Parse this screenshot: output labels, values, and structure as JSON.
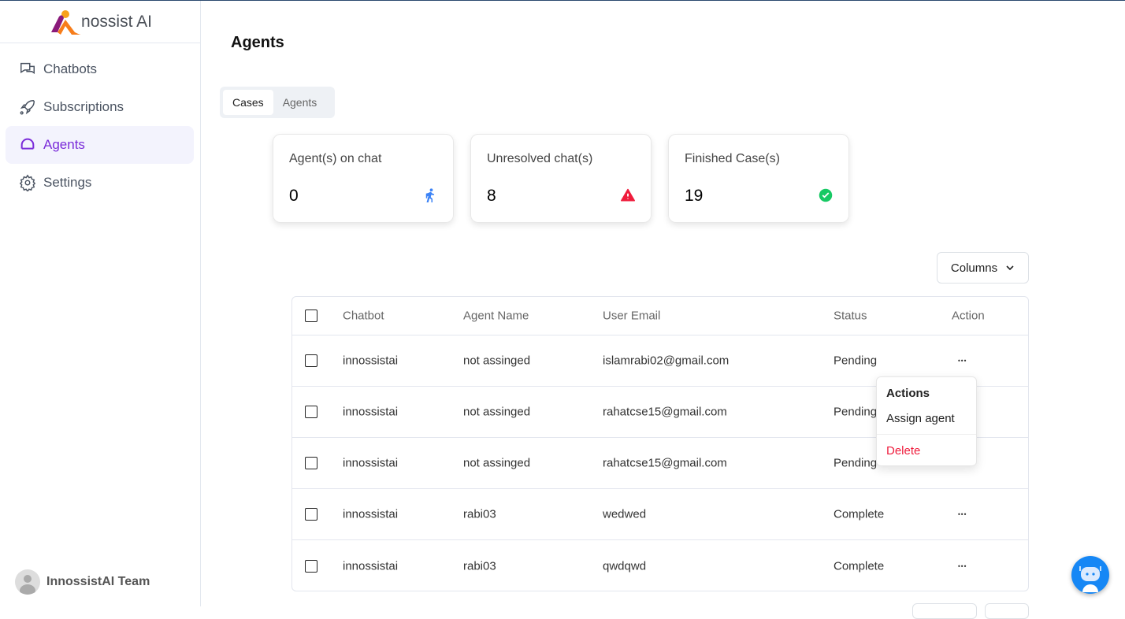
{
  "sidebar": {
    "brand": "nossist AI",
    "items": [
      {
        "label": "Chatbots",
        "icon": "chat-icon"
      },
      {
        "label": "Subscriptions",
        "icon": "rocket-icon"
      },
      {
        "label": "Agents",
        "icon": "headset-icon",
        "active": true
      },
      {
        "label": "Settings",
        "icon": "gear-icon"
      }
    ],
    "user": "InnossistAI Team"
  },
  "header": {
    "title": "Agents"
  },
  "tabs": [
    {
      "label": "Cases",
      "active": true
    },
    {
      "label": "Agents"
    }
  ],
  "stats": [
    {
      "label": "Agent(s) on chat",
      "value": "0",
      "icon": "running-person-icon",
      "color": "#3b82f6"
    },
    {
      "label": "Unresolved chat(s)",
      "value": "8",
      "icon": "warning-icon",
      "color": "#ef1c3c"
    },
    {
      "label": "Finished Case(s)",
      "value": "19",
      "icon": "check-circle-icon",
      "color": "#17c964"
    }
  ],
  "columns_button": "Columns",
  "table": {
    "headers": [
      "Chatbot",
      "Agent Name",
      "User Email",
      "Status",
      "Action"
    ],
    "rows": [
      [
        "innossistai",
        "not assinged",
        "islamrabi02@gmail.com",
        "Pending"
      ],
      [
        "innossistai",
        "not assinged",
        "rahatcse15@gmail.com",
        "Pending"
      ],
      [
        "innossistai",
        "not assinged",
        "rahatcse15@gmail.com",
        "Pending"
      ],
      [
        "innossistai",
        "rabi03",
        "wedwed",
        "Complete"
      ],
      [
        "innossistai",
        "rabi03",
        "qwdqwd",
        "Complete"
      ]
    ]
  },
  "menu": {
    "title": "Actions",
    "assign": "Assign agent",
    "delete": "Delete"
  },
  "colors": {
    "accent": "#7a2bd9",
    "danger": "#ef1c3c"
  }
}
